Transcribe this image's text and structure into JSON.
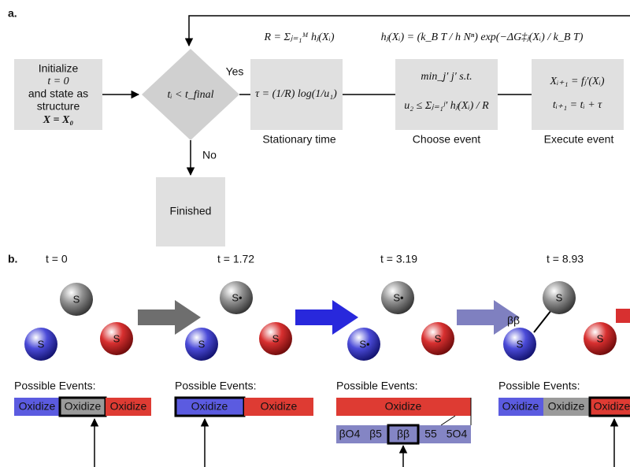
{
  "panel_a": {
    "label": "a.",
    "init": {
      "lines": [
        "Initialize",
        "t = 0",
        "and state as",
        "structure",
        "X = X₀"
      ]
    },
    "condition": {
      "label": "tᵢ < t_final",
      "yes": "Yes",
      "no": "No"
    },
    "finished": {
      "label": "Finished"
    },
    "stationary": {
      "formula_above": "R = Σⱼ₌₁ᴹ hⱼ(Xᵢ)",
      "formula": "τ = (1/R) log(1/u₁)",
      "caption": "Stationary time"
    },
    "choose": {
      "formula_above": "hⱼ(Xᵢ) = (k_B T / h Nⁿ) exp(−ΔG‡ⱼ(Xᵢ) / k_B T)",
      "lines": [
        "min_j′ j′     s.t.",
        "u₂ ≤ Σⱼ₌₁ʲ′ hⱼ(Xᵢ) / R"
      ],
      "caption": "Choose event"
    },
    "execute": {
      "lines": [
        "Xᵢ₊₁ = fⱼ′(Xᵢ)",
        "tᵢ₊₁ = tᵢ + τ"
      ],
      "caption": "Execute event"
    }
  },
  "panel_b": {
    "label": "b.",
    "steps": [
      {
        "time": "t = 0",
        "spheres": [
          "S",
          "S",
          "S"
        ],
        "events_title": "Possible Events:",
        "events": [
          "Oxidize",
          "Oxidize",
          "Oxidize"
        ]
      },
      {
        "time": "t = 1.72",
        "spheres": [
          "S•",
          "S",
          "S"
        ],
        "events_title": "Possible Events:",
        "events": [
          "Oxidize",
          "Oxidize"
        ]
      },
      {
        "time": "t = 3.19",
        "spheres": [
          "S•",
          "S•",
          "S"
        ],
        "events_title": "Possible Events:",
        "events": [
          "Oxidize"
        ],
        "sub_events": [
          "βO4",
          "β5",
          "ββ",
          "55",
          "5O4"
        ]
      },
      {
        "time": "t = 8.93",
        "spheres": [
          "S",
          "S",
          "S"
        ],
        "bond": "ββ",
        "events_title": "Possible Events:",
        "events": [
          "Oxidize",
          "Oxidize",
          "Oxidize"
        ]
      }
    ]
  }
}
